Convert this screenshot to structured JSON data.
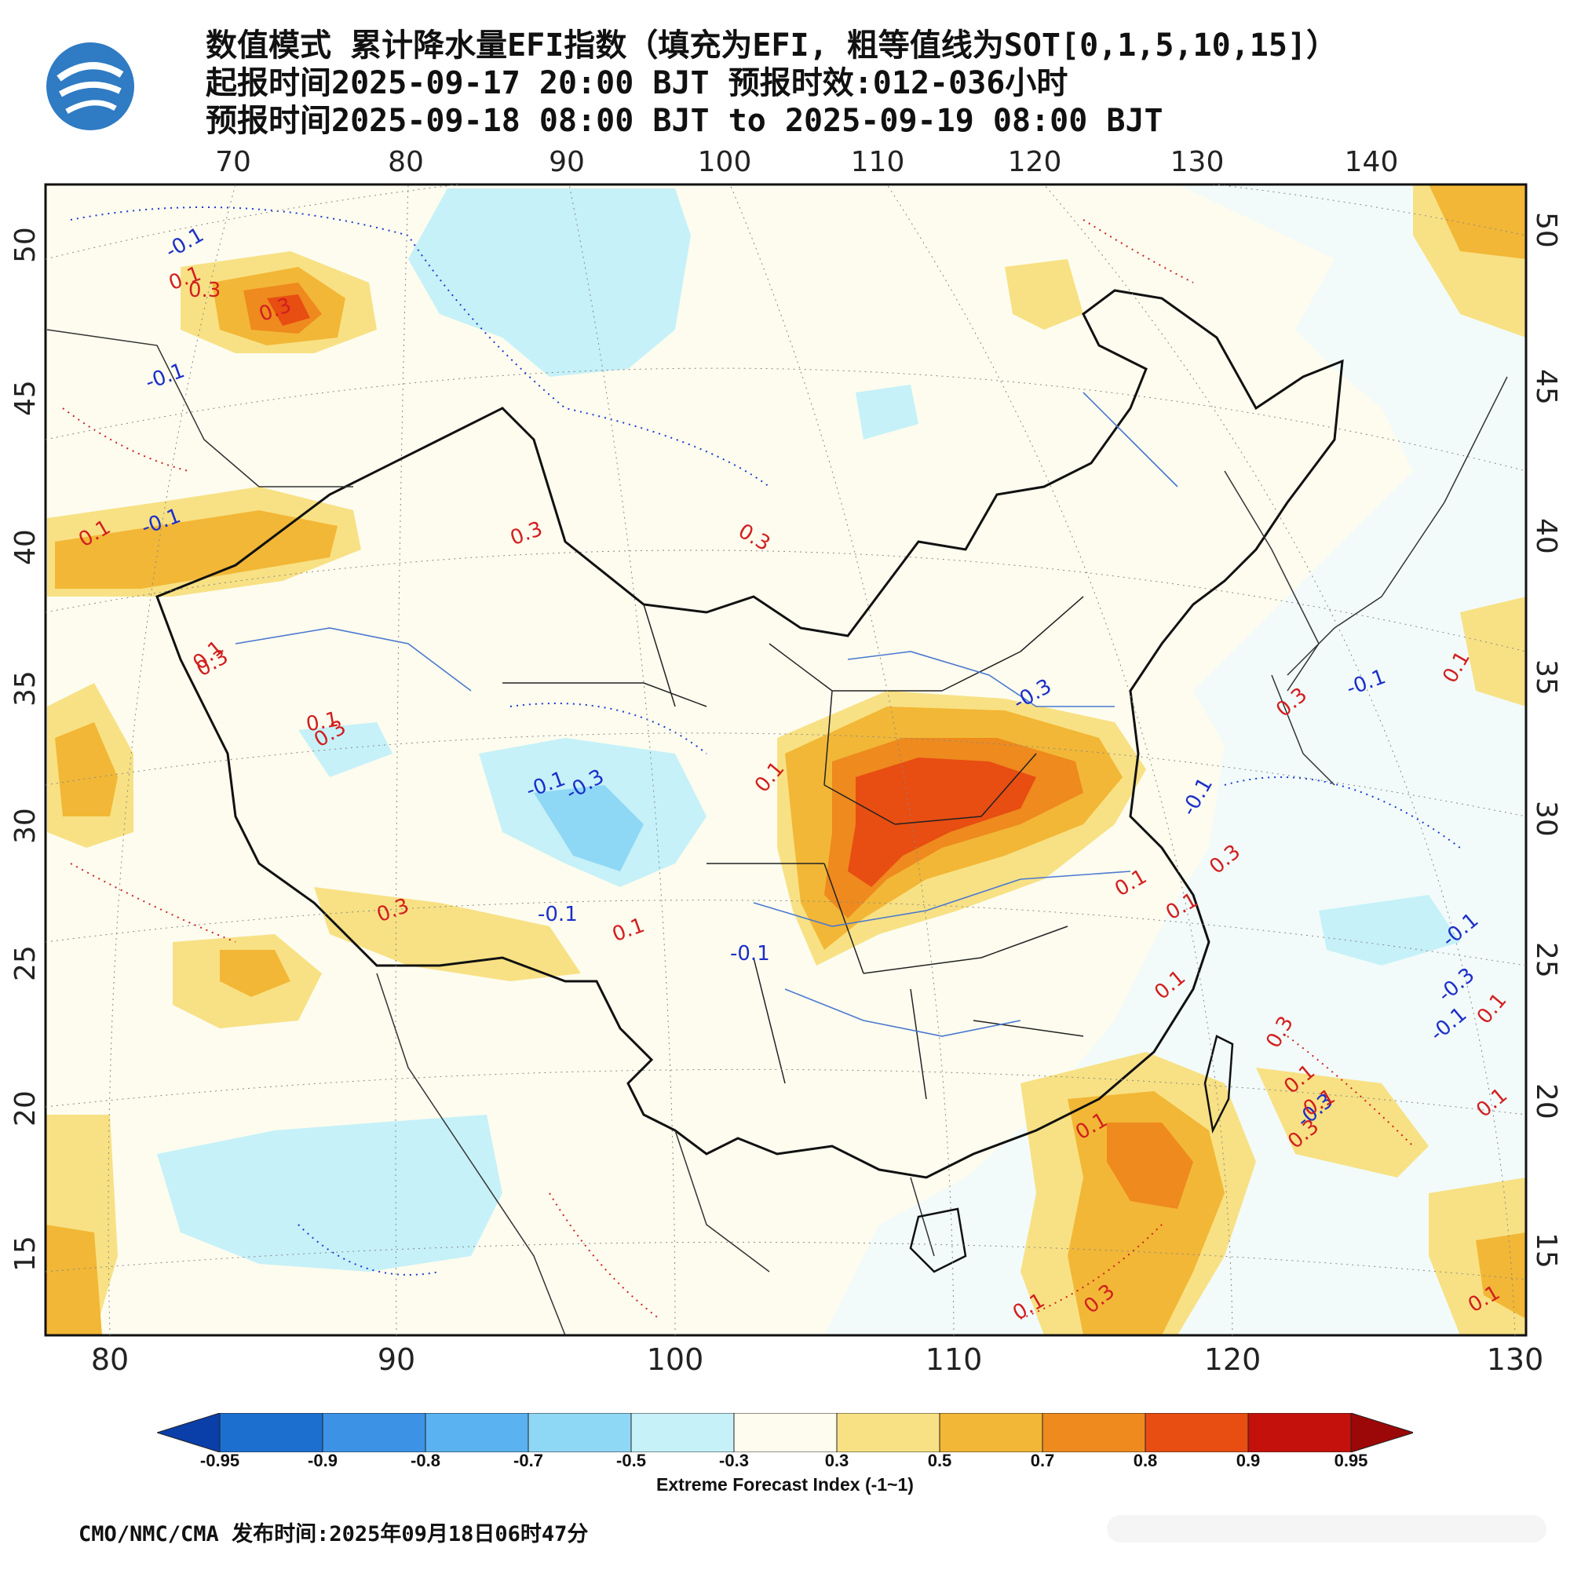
{
  "title": {
    "line1": "数值模式 累计降水量EFI指数（填充为EFI, 粗等值线为SOT[0,1,5,10,15]）",
    "line2": "起报时间2025-09-17 20:00 BJT 预报时效:012-036小时",
    "line3": "预报时间2025-09-18 08:00 BJT to 2025-09-19 08:00 BJT"
  },
  "axes": {
    "top_lon": [
      "70",
      "80",
      "90",
      "100",
      "110",
      "120",
      "130",
      "140"
    ],
    "bottom_lon": [
      "80",
      "90",
      "100",
      "110",
      "120",
      "130"
    ],
    "left_lat": [
      "50",
      "45",
      "40",
      "35",
      "30",
      "25",
      "20",
      "15"
    ],
    "right_lat": [
      "50",
      "45",
      "40",
      "35",
      "30",
      "25",
      "20",
      "15"
    ]
  },
  "contour_labels": [
    "-0.1",
    "0.3",
    "0.1",
    "0.3",
    "-0.1",
    "0.1",
    "-0.1",
    "0.3",
    "0.3",
    "0.1",
    "0.3",
    "0.1",
    "0.3",
    "-0.1",
    "-0.3",
    "0.1",
    "-0.1",
    "0.1",
    "0.3",
    "-0.1",
    "-0.3",
    "-0.1",
    "0.3",
    "0.1",
    "0.1",
    "0.3",
    "-0.3",
    "0.1",
    "-0.1",
    "-0.1",
    "0.1",
    "0.1",
    "0.3",
    "0.1",
    "0.3",
    "-0.1",
    "0.1",
    "0.1",
    "0.1",
    "-0.3",
    "0.1",
    "0.1",
    "0.3"
  ],
  "colorbar": {
    "title": "Extreme Forecast Index (-1~1)",
    "labels": [
      "-0.95",
      "-0.9",
      "-0.8",
      "-0.7",
      "-0.5",
      "-0.3",
      "0.3",
      "0.5",
      "0.7",
      "0.8",
      "0.9",
      "0.95"
    ],
    "colors": [
      "#0a3ea8",
      "#1c6fcf",
      "#3c93e6",
      "#5ab2f0",
      "#8fd8f5",
      "#c6f1f8",
      "#fdfcef",
      "#f8e184",
      "#f2b736",
      "#ee8a1e",
      "#e84d12",
      "#c4110c",
      "#9c0808"
    ]
  },
  "footer": "CMO/NMC/CMA 发布时间:2025年09月18日06时47分",
  "icons": {
    "logo": "cma-logo"
  }
}
